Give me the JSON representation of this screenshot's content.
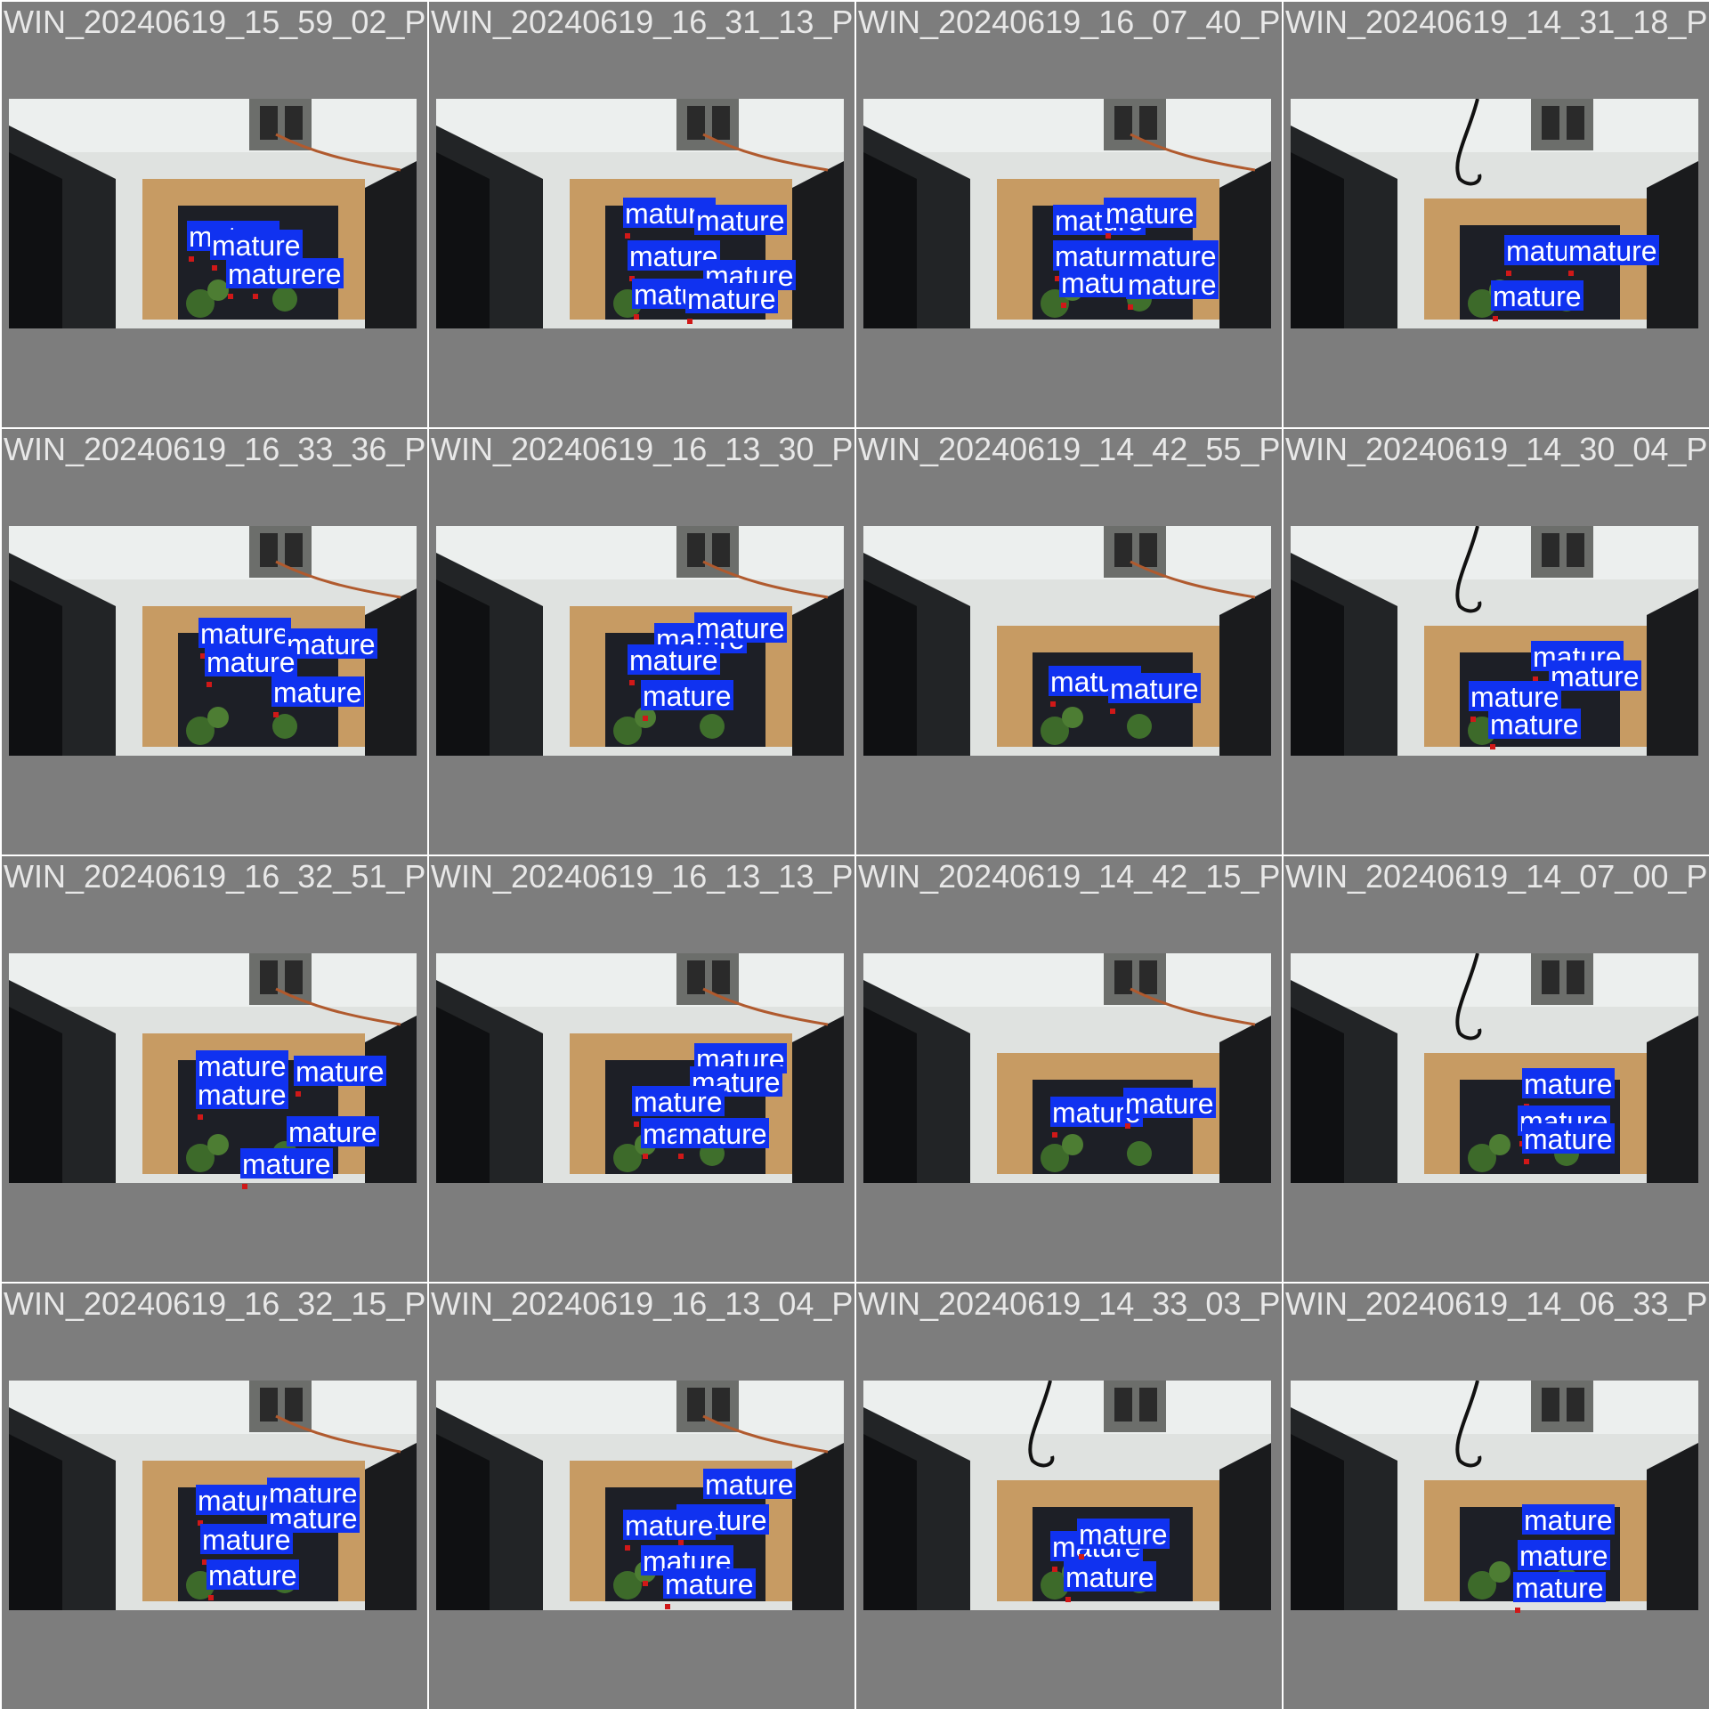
{
  "colors": {
    "label_bg": "#1032f0",
    "label_text": "#ffffff",
    "background": "#7d7d7d",
    "title_text": "#e8e8e8"
  },
  "tiles": [
    {
      "title": "WIN_20240619_15_59_02_Pro",
      "labels": [
        "mature",
        "mature",
        "mature",
        "mature"
      ]
    },
    {
      "title": "WIN_20240619_16_31_13_Pro",
      "labels": [
        "mature",
        "mature",
        "mature",
        "mature",
        "mature",
        "mature"
      ]
    },
    {
      "title": "WIN_20240619_16_07_40_Pro",
      "labels": [
        "mature",
        "mature",
        "mature",
        "mature",
        "mature",
        "mature"
      ]
    },
    {
      "title": "WIN_20240619_14_31_18_Pro",
      "labels": [
        "mature",
        "mature",
        "mature"
      ]
    },
    {
      "title": "WIN_20240619_16_33_36_Pro",
      "labels": [
        "mature",
        "mature",
        "mature",
        "mature"
      ]
    },
    {
      "title": "WIN_20240619_16_13_30_Pro",
      "labels": [
        "mature",
        "mature",
        "mature",
        "mature",
        "mature"
      ]
    },
    {
      "title": "WIN_20240619_14_42_55_Pro",
      "labels": [
        "mature",
        "mature"
      ]
    },
    {
      "title": "WIN_20240619_14_30_04_Pro",
      "labels": [
        "mature",
        "mature",
        "mature",
        "mature"
      ]
    },
    {
      "title": "WIN_20240619_16_32_51_Pro",
      "labels": [
        "mature",
        "mature",
        "mature",
        "mature",
        "mature",
        "mature"
      ]
    },
    {
      "title": "WIN_20240619_16_13_13_Pro",
      "labels": [
        "mature",
        "mature",
        "mature",
        "mature",
        "mature",
        "mature"
      ]
    },
    {
      "title": "WIN_20240619_14_42_15_Pro",
      "labels": [
        "mature",
        "mature"
      ]
    },
    {
      "title": "WIN_20240619_14_07_00_Pro",
      "labels": [
        "mature",
        "mature",
        "mature"
      ]
    },
    {
      "title": "WIN_20240619_16_32_15_Pro",
      "labels": [
        "mature",
        "mature",
        "mature",
        "mature",
        "mature",
        "mature"
      ]
    },
    {
      "title": "WIN_20240619_16_13_04_Pro",
      "labels": [
        "mature",
        "mature",
        "mature",
        "mature",
        "mature",
        "mature"
      ]
    },
    {
      "title": "WIN_20240619_14_33_03_Pro",
      "labels": [
        "mature",
        "mature",
        "mature",
        "mature"
      ]
    },
    {
      "title": "WIN_20240619_14_06_33_Pro",
      "labels": [
        "mature",
        "mature",
        "mature"
      ]
    }
  ]
}
